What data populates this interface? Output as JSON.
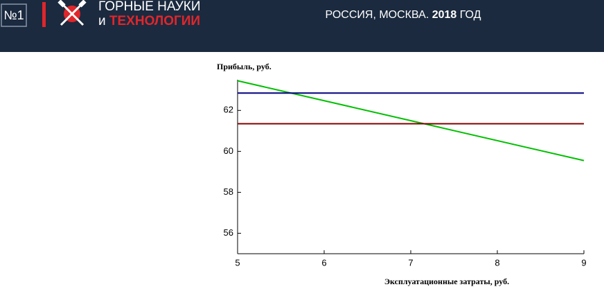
{
  "header": {
    "issue": "№1",
    "title_line1": "ГОРНЫЕ НАУКИ",
    "title_line2_prefix": "и",
    "title_line2_accent": "ТЕХНОЛОГИИ",
    "location": "РОССИЯ, МОСКВА.",
    "year": "2018",
    "year_suffix": "ГОД"
  },
  "chart_data": {
    "type": "line",
    "y_label": "Прибыль, руб.",
    "x_label": "Эксплуатационные затраты, руб.",
    "x": [
      5,
      9
    ],
    "series": [
      {
        "color": "#00c000",
        "values": [
          63.45,
          59.55
        ]
      },
      {
        "color": "#000080",
        "values": [
          62.85,
          62.85
        ]
      },
      {
        "color": "#800000",
        "values": [
          61.35,
          61.35
        ]
      }
    ],
    "xlim": [
      5,
      9
    ],
    "xticks": [
      5,
      6,
      7,
      8,
      9
    ],
    "ylim": [
      55,
      63.5
    ],
    "yticks": [
      56,
      58,
      60,
      62
    ],
    "grid": false
  }
}
